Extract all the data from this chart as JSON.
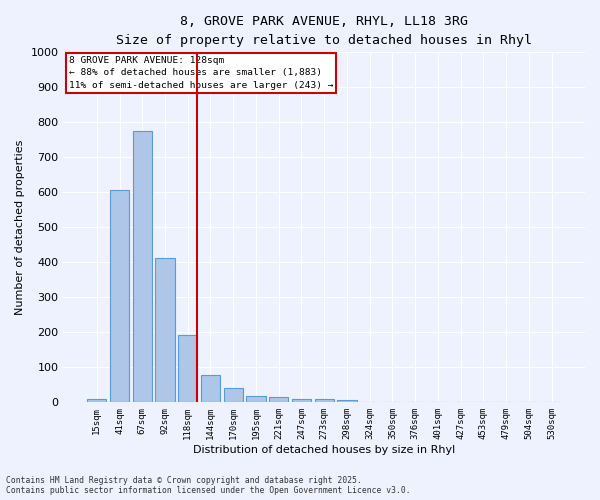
{
  "title_line1": "8, GROVE PARK AVENUE, RHYL, LL18 3RG",
  "title_line2": "Size of property relative to detached houses in Rhyl",
  "xlabel": "Distribution of detached houses by size in Rhyl",
  "ylabel": "Number of detached properties",
  "categories": [
    "15sqm",
    "41sqm",
    "67sqm",
    "92sqm",
    "118sqm",
    "144sqm",
    "170sqm",
    "195sqm",
    "221sqm",
    "247sqm",
    "273sqm",
    "298sqm",
    "324sqm",
    "350sqm",
    "376sqm",
    "401sqm",
    "427sqm",
    "453sqm",
    "479sqm",
    "504sqm",
    "530sqm"
  ],
  "values": [
    10,
    608,
    775,
    413,
    193,
    78,
    40,
    18,
    15,
    10,
    10,
    8,
    0,
    0,
    0,
    0,
    0,
    0,
    0,
    0,
    0
  ],
  "bar_color": "#aec6e8",
  "bar_edge_color": "#5b9bd5",
  "highlight_label_line1": "8 GROVE PARK AVENUE: 128sqm",
  "highlight_label_line2": "← 88% of detached houses are smaller (1,883)",
  "highlight_label_line3": "11% of semi-detached houses are larger (243) →",
  "annotation_box_color": "#cc0000",
  "vline_color": "#cc0000",
  "ylim": [
    0,
    1000
  ],
  "yticks": [
    0,
    100,
    200,
    300,
    400,
    500,
    600,
    700,
    800,
    900,
    1000
  ],
  "background_color": "#eef2ff",
  "grid_color": "#ffffff",
  "footer_line1": "Contains HM Land Registry data © Crown copyright and database right 2025.",
  "footer_line2": "Contains public sector information licensed under the Open Government Licence v3.0."
}
